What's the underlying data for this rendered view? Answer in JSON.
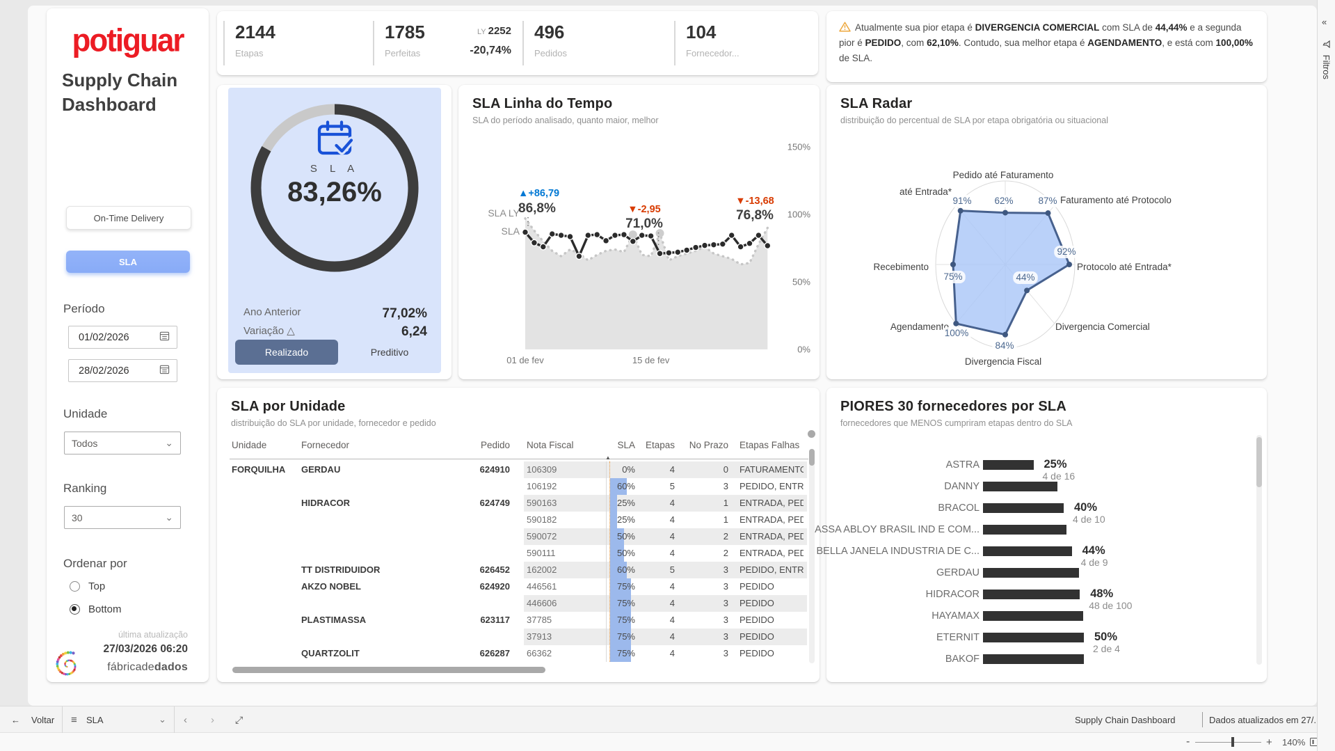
{
  "brand": {
    "logo": "potiguar",
    "title": "Supply Chain Dashboard",
    "accent": "#ec1c24"
  },
  "sidebar": {
    "nav": [
      {
        "label": "On-Time Delivery",
        "active": false
      },
      {
        "label": "SLA",
        "active": true
      }
    ],
    "periodo": {
      "label": "Período",
      "from": "01/02/2026",
      "to": "28/02/2026"
    },
    "unidade": {
      "label": "Unidade",
      "value": "Todos"
    },
    "ranking": {
      "label": "Ranking",
      "value": "30"
    },
    "ordenar": {
      "label": "Ordenar por",
      "options": [
        {
          "label": "Top",
          "selected": false
        },
        {
          "label": "Bottom",
          "selected": true
        }
      ]
    },
    "update": {
      "caption": "última atualização",
      "datetime": "27/03/2026 06:20",
      "vendor_regular": "fábricade",
      "vendor_bold": "dados"
    }
  },
  "kpis": [
    {
      "value": "2144",
      "label": "Etapas"
    },
    {
      "value": "1785",
      "label": "Perfeitas",
      "ly_label": "LY",
      "ly_value": "2252",
      "delta": "-20,74%"
    },
    {
      "value": "496",
      "label": "Pedidos"
    },
    {
      "value": "104",
      "label": "Fornecedor..."
    }
  ],
  "alert": {
    "segments": [
      {
        "text": "Atualmente sua pior etapa é ",
        "bold": false
      },
      {
        "text": "DIVERGENCIA COMERCIAL",
        "bold": true
      },
      {
        "text": " com SLA de ",
        "bold": false
      },
      {
        "text": "44,44%",
        "bold": true
      },
      {
        "text": " e a segunda pior é ",
        "bold": false
      },
      {
        "text": "PEDIDO",
        "bold": true
      },
      {
        "text": ", com ",
        "bold": false
      },
      {
        "text": "62,10%",
        "bold": true
      },
      {
        "text": ". Contudo, sua melhor etapa é ",
        "bold": false
      },
      {
        "text": "AGENDAMENTO",
        "bold": true
      },
      {
        "text": ", e está com ",
        "bold": false
      },
      {
        "text": "100,00%",
        "bold": true
      },
      {
        "text": " de SLA.",
        "bold": false
      }
    ]
  },
  "gauge": {
    "icon": "calendar-check-icon",
    "label": "S L A",
    "value": "83,26%",
    "pct": 83.26,
    "rows": [
      {
        "label": "Ano Anterior",
        "value": "77,02%"
      },
      {
        "label": "Variação △",
        "value": "6,24"
      }
    ],
    "buttons": [
      {
        "label": "Realizado",
        "active": true
      },
      {
        "label": "Preditivo",
        "active": false
      }
    ]
  },
  "timeline": {
    "title": "SLA Linha do Tempo",
    "subtitle": "SLA do período analisado, quanto maior, melhor"
  },
  "radar": {
    "title": "SLA Radar",
    "subtitle": "distribuição do percentual de SLA por etapa obrigatória ou situacional"
  },
  "table": {
    "title": "SLA por Unidade",
    "subtitle": "distribuição do SLA por unidade, fornecedor e pedido",
    "columns": [
      "Unidade",
      "Fornecedor",
      "Pedido",
      "Nota Fiscal",
      "SLA",
      "Etapas",
      "No Prazo",
      "Etapas Falhas"
    ],
    "sort_icon": "▲",
    "rows": [
      {
        "unidade": "FORQUILHA",
        "fornecedor": "GERDAU",
        "pedido": "624910",
        "nota": "106309",
        "sla_pct": 0,
        "sla": "0%",
        "etapas": "4",
        "prazo": "0",
        "falhas": "FATURAMENTO"
      },
      {
        "unidade": "",
        "fornecedor": "",
        "pedido": "",
        "nota": "106192",
        "sla_pct": 60,
        "sla": "60%",
        "etapas": "5",
        "prazo": "3",
        "falhas": "PEDIDO, ENTREGA"
      },
      {
        "unidade": "",
        "fornecedor": "HIDRACOR",
        "pedido": "624749",
        "nota": "590163",
        "sla_pct": 25,
        "sla": "25%",
        "etapas": "4",
        "prazo": "1",
        "falhas": "ENTRADA, PEDIDO"
      },
      {
        "unidade": "",
        "fornecedor": "",
        "pedido": "",
        "nota": "590182",
        "sla_pct": 25,
        "sla": "25%",
        "etapas": "4",
        "prazo": "1",
        "falhas": "ENTRADA, PEDIDO"
      },
      {
        "unidade": "",
        "fornecedor": "",
        "pedido": "",
        "nota": "590072",
        "sla_pct": 50,
        "sla": "50%",
        "etapas": "4",
        "prazo": "2",
        "falhas": "ENTRADA, PEDIDO"
      },
      {
        "unidade": "",
        "fornecedor": "",
        "pedido": "",
        "nota": "590111",
        "sla_pct": 50,
        "sla": "50%",
        "etapas": "4",
        "prazo": "2",
        "falhas": "ENTRADA, PEDIDO"
      },
      {
        "unidade": "",
        "fornecedor": "TT DISTRIDUIDOR",
        "pedido": "626452",
        "nota": "162002",
        "sla_pct": 60,
        "sla": "60%",
        "etapas": "5",
        "prazo": "3",
        "falhas": "PEDIDO, ENTREGA"
      },
      {
        "unidade": "",
        "fornecedor": "AKZO NOBEL",
        "pedido": "624920",
        "nota": "446561",
        "sla_pct": 75,
        "sla": "75%",
        "etapas": "4",
        "prazo": "3",
        "falhas": "PEDIDO"
      },
      {
        "unidade": "",
        "fornecedor": "",
        "pedido": "",
        "nota": "446606",
        "sla_pct": 75,
        "sla": "75%",
        "etapas": "4",
        "prazo": "3",
        "falhas": "PEDIDO"
      },
      {
        "unidade": "",
        "fornecedor": "PLASTIMASSA",
        "pedido": "623117",
        "nota": "37785",
        "sla_pct": 75,
        "sla": "75%",
        "etapas": "4",
        "prazo": "3",
        "falhas": "PEDIDO"
      },
      {
        "unidade": "",
        "fornecedor": "",
        "pedido": "",
        "nota": "37913",
        "sla_pct": 75,
        "sla": "75%",
        "etapas": "4",
        "prazo": "3",
        "falhas": "PEDIDO"
      },
      {
        "unidade": "",
        "fornecedor": "QUARTZOLIT",
        "pedido": "626287",
        "nota": "66362",
        "sla_pct": 75,
        "sla": "75%",
        "etapas": "4",
        "prazo": "3",
        "falhas": "PEDIDO"
      }
    ]
  },
  "suppliers": {
    "title": "PIORES 30 fornecedores por SLA",
    "subtitle": "fornecedores que MENOS cumpriram etapas dentro do SLA"
  },
  "chart_data": [
    {
      "id": "timeline",
      "type": "line",
      "title": "SLA Linha do Tempo",
      "x_days": [
        1,
        2,
        3,
        4,
        5,
        6,
        7,
        8,
        9,
        10,
        11,
        12,
        13,
        14,
        15,
        16,
        17,
        18,
        19,
        20,
        21,
        22,
        23,
        24,
        25,
        26,
        27,
        28
      ],
      "series": [
        {
          "name": "SLA",
          "values": [
            86.8,
            79,
            76,
            85.5,
            84.5,
            83.5,
            69,
            84.5,
            85,
            80.5,
            84.5,
            85,
            80,
            84.5,
            84,
            71,
            71.5,
            72,
            73.5,
            75.5,
            77,
            77.5,
            78,
            84.5,
            76,
            78.5,
            84.5,
            76.8
          ]
        },
        {
          "name": "SLA LY",
          "values": [
            97,
            88,
            80,
            73,
            69,
            74,
            71,
            66,
            70,
            73,
            74,
            72,
            85,
            70,
            69,
            86,
            66,
            69,
            71,
            73,
            76,
            71,
            69,
            67,
            63,
            64,
            78,
            90
          ]
        }
      ],
      "ylim": [
        0,
        150
      ],
      "y_ticks": [
        "150%",
        "100%",
        "50%",
        "0%"
      ],
      "x_tick_labels": [
        "01 de fev",
        "15 de fev"
      ],
      "annotations": [
        {
          "day": 1,
          "delta": "▲+86,79",
          "value": "86,8%",
          "color": "#0078d4"
        },
        {
          "day": 16,
          "delta": "▼-2,95",
          "value": "71,0%",
          "color": "#d83b01"
        },
        {
          "day": 28,
          "delta": "▼-13,68",
          "value": "76,8%",
          "color": "#d83b01"
        }
      ]
    },
    {
      "id": "radar",
      "type": "radar",
      "title": "SLA Radar",
      "axes": [
        {
          "label": "Pedido até Faturamento",
          "value": 62,
          "value_label": "62%"
        },
        {
          "label": "Faturamento até Protocolo",
          "value": 87,
          "value_label": "87%"
        },
        {
          "label": "Protocolo até Entrada*",
          "value": 92,
          "value_label": "92%"
        },
        {
          "label": "Divergencia Comercial",
          "value": 44,
          "value_label": "44%"
        },
        {
          "label": "Divergencia Fiscal",
          "value": 84,
          "value_label": "84%"
        },
        {
          "label": "Agendamento",
          "value": 100,
          "value_label": "100%"
        },
        {
          "label": "Recebimento",
          "value": 75,
          "value_label": "75%"
        },
        {
          "label": "até Entrada*",
          "value": 91,
          "value_label": "91%"
        }
      ]
    },
    {
      "id": "suppliers",
      "type": "bar",
      "title": "PIORES 30 fornecedores por SLA",
      "categories": [
        "ASTRA",
        "DANNY",
        "BRACOL",
        "ASSA ABLOY BRASIL IND E COM...",
        "BELLA JANELA INDUSTRIA DE C...",
        "GERDAU",
        "HIDRACOR",
        "HAYAMAX",
        "ETERNIT",
        "BAKOF"
      ],
      "values": [
        25,
        37,
        40,
        41.5,
        44,
        47.5,
        48,
        49.5,
        50,
        50
      ],
      "data_labels": [
        {
          "index": 0,
          "pct": "25%",
          "frac": "4 de 16"
        },
        {
          "index": 2,
          "pct": "40%",
          "frac": "4 de 10"
        },
        {
          "index": 4,
          "pct": "44%",
          "frac": "4 de 9"
        },
        {
          "index": 6,
          "pct": "48%",
          "frac": "48 de 100"
        },
        {
          "index": 8,
          "pct": "50%",
          "frac": "2 de 4"
        }
      ]
    }
  ],
  "footer": {
    "back": "Voltar",
    "page_selector": "SLA",
    "title": "Supply Chain Dashboard",
    "status": "Dados atualizados em 27/...",
    "zoom": "140%"
  },
  "filter_rail": {
    "label": "Filtros"
  }
}
